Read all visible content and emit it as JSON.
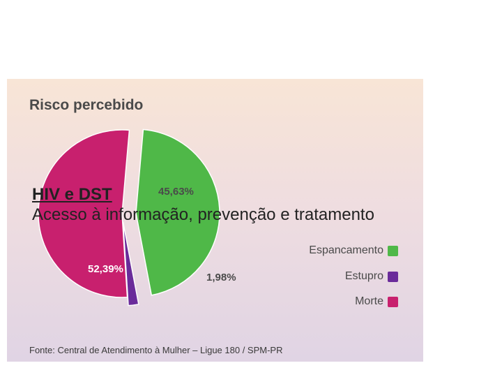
{
  "slide": {
    "heading": "HIV e DST",
    "body": "Acesso à informação, prevenção e tratamento"
  },
  "chart_data": {
    "type": "pie",
    "title": "Risco percebido",
    "source": "Fonte: Central de Atendimento à Mulher – Ligue 180 / SPM-PR",
    "legend_position": "right",
    "slices": [
      {
        "name": "Espancamento",
        "value": 45.63,
        "label": "45,63%",
        "color": "#4fb848"
      },
      {
        "name": "Estupro",
        "value": 1.98,
        "label": "1,98%",
        "color": "#6a2b9a"
      },
      {
        "name": "Morte",
        "value": 52.39,
        "label": "52,39%",
        "color": "#c8206e"
      }
    ]
  }
}
